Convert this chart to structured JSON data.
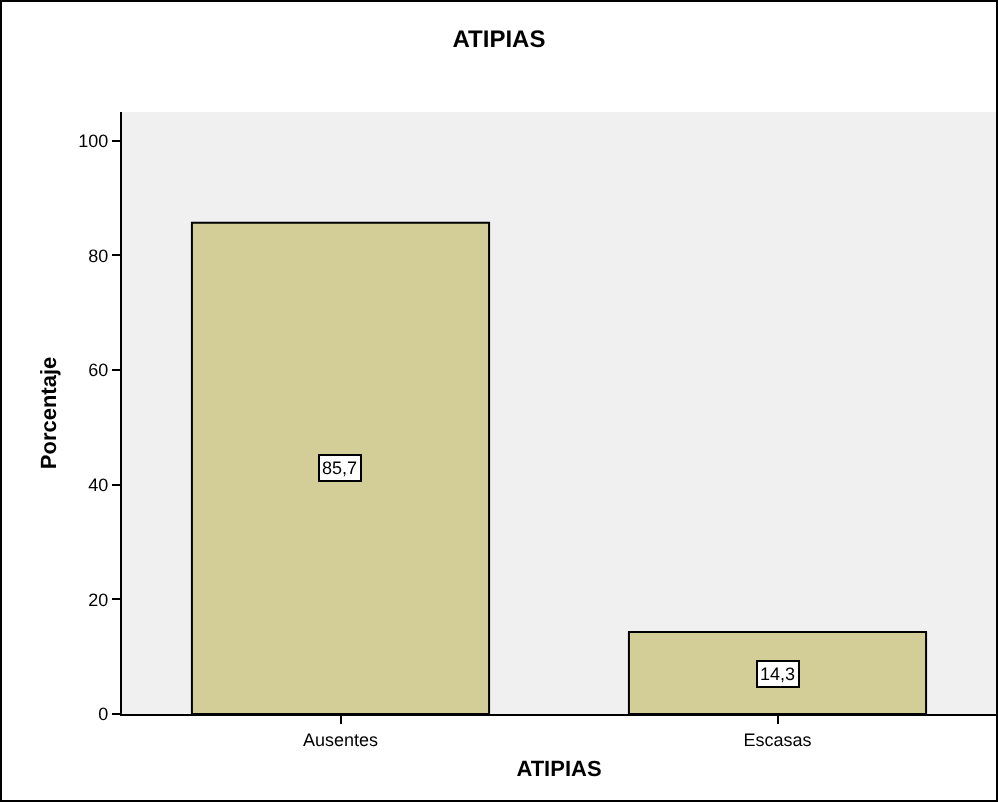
{
  "chart_data": {
    "type": "bar",
    "title": "ATIPIAS",
    "xlabel": "ATIPIAS",
    "ylabel": "Porcentaje",
    "categories": [
      "Ausentes",
      "Escasas"
    ],
    "values": [
      85.7,
      14.3
    ],
    "value_labels": [
      "85,7",
      "14,3"
    ],
    "color": "#d3ce98",
    "ylim": [
      0,
      105
    ],
    "yticks": [
      0,
      20,
      40,
      60,
      80,
      100
    ],
    "grid": false,
    "legend": false
  }
}
